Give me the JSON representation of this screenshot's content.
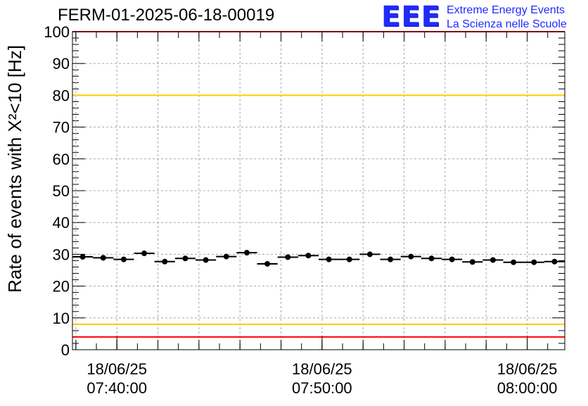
{
  "title": "FERM-01-2025-06-18-00019",
  "logo": {
    "mark": "EEE",
    "line1": "Extreme Energy Events",
    "line2": "La Scienza nelle Scuole",
    "color": "#1f2bff"
  },
  "chart_data": {
    "type": "scatter",
    "title": "FERM-01-2025-06-18-00019",
    "ylabel": "Rate of events with X²<10 [Hz]",
    "xlabel": "",
    "ylim": [
      0,
      100
    ],
    "y_ticks": [
      "0",
      "10",
      "20",
      "30",
      "40",
      "50",
      "60",
      "70",
      "80",
      "90",
      "100"
    ],
    "x_range": [
      "18/06/25 07:37:50",
      "18/06/25 08:01:50"
    ],
    "x_ticks": [
      {
        "date": "18/06/25",
        "time": "07:40:00"
      },
      {
        "date": "18/06/25",
        "time": "07:50:00"
      },
      {
        "date": "18/06/25",
        "time": "08:00:00"
      }
    ],
    "grid": true,
    "bin_width_seconds": 60,
    "x": [
      "07:38:20",
      "07:39:20",
      "07:40:20",
      "07:41:20",
      "07:42:20",
      "07:43:20",
      "07:44:20",
      "07:45:20",
      "07:46:20",
      "07:47:20",
      "07:48:20",
      "07:49:20",
      "07:50:20",
      "07:51:20",
      "07:52:20",
      "07:53:20",
      "07:54:20",
      "07:55:20",
      "07:56:20",
      "07:57:20",
      "07:58:20",
      "07:59:20",
      "08:00:20",
      "08:01:20"
    ],
    "values": [
      29.2,
      28.9,
      28.4,
      30.3,
      27.7,
      28.7,
      28.2,
      29.3,
      30.5,
      27.0,
      29.1,
      29.6,
      28.4,
      28.4,
      30.0,
      28.4,
      29.3,
      28.7,
      28.4,
      27.6,
      28.2,
      27.5,
      27.5,
      27.7
    ],
    "reference_lines": [
      {
        "y": 100,
        "color": "#ff0000"
      },
      {
        "y": 80,
        "color": "#ffcc00"
      },
      {
        "y": 8,
        "color": "#ffcc00"
      },
      {
        "y": 4,
        "color": "#ff0000"
      }
    ],
    "marker_color": "#000000"
  }
}
